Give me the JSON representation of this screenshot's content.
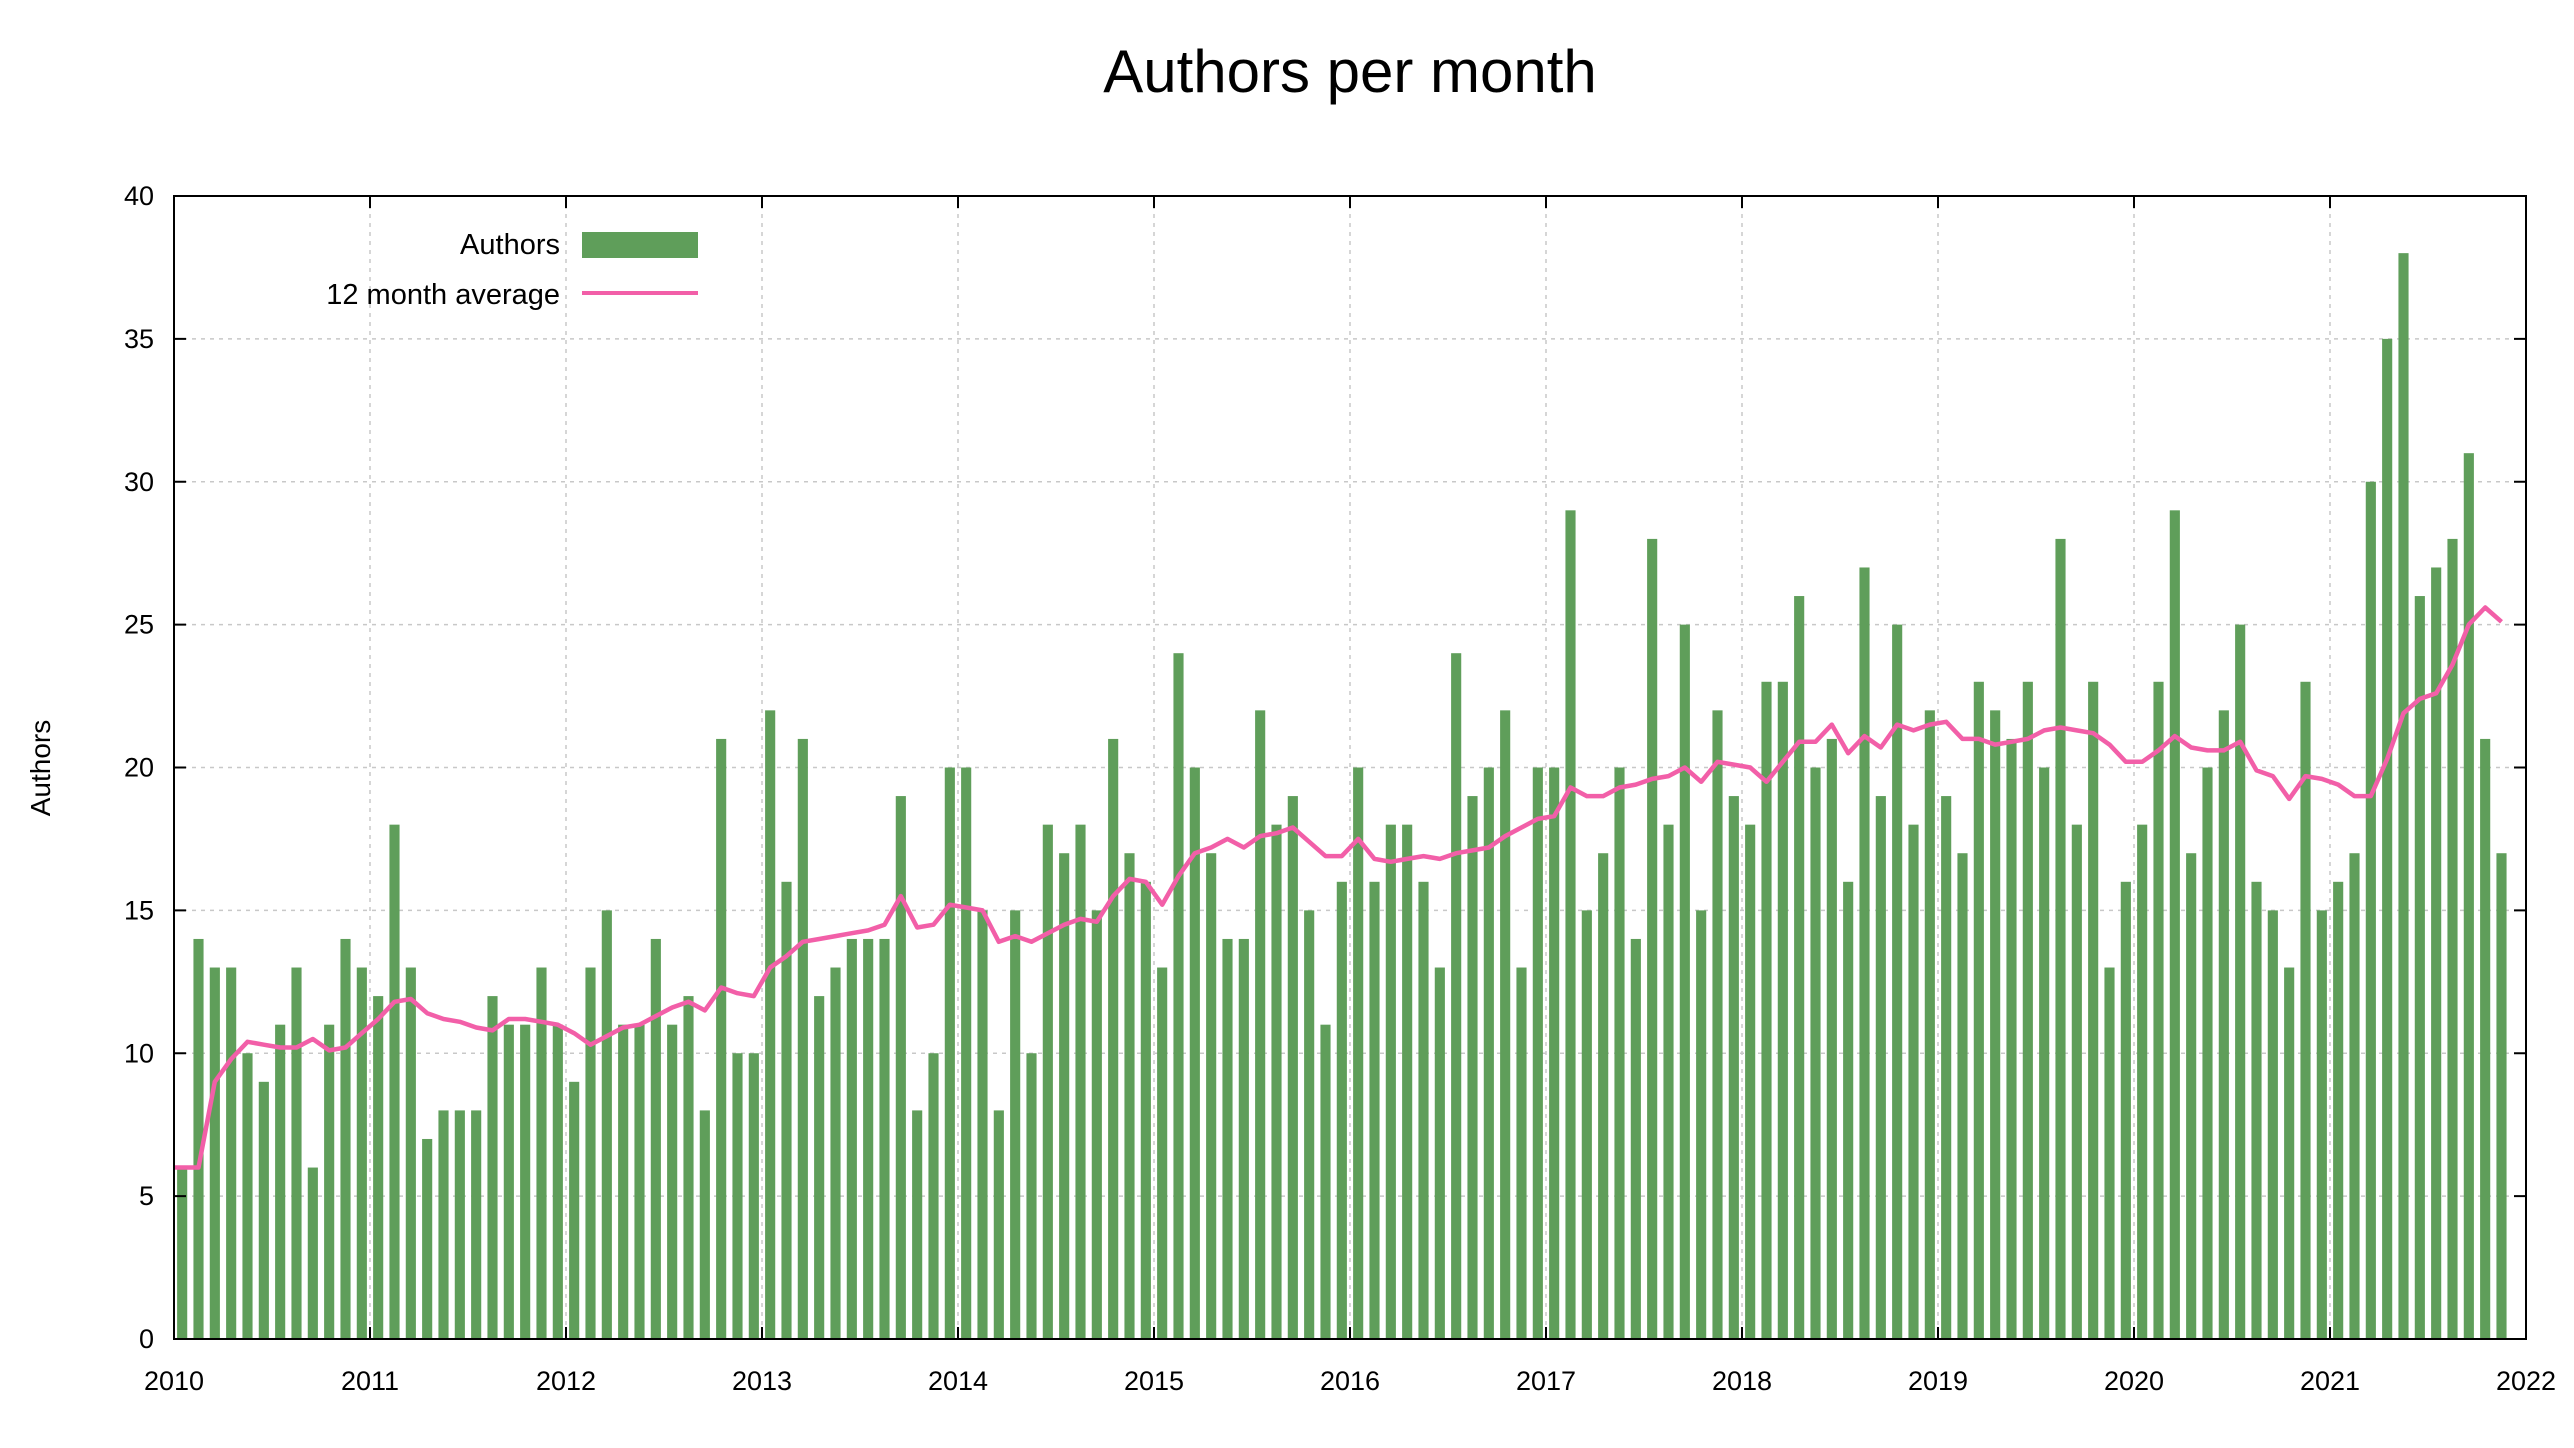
{
  "chart_data": {
    "type": "bar",
    "title": "Authors per month",
    "ylabel": "Authors",
    "xlabel": "",
    "ylim": [
      0,
      40
    ],
    "yticks": [
      0,
      5,
      10,
      15,
      20,
      25,
      30,
      35,
      40
    ],
    "xlim": [
      "2010-01",
      "2022-01"
    ],
    "xticks": [
      "2010",
      "2011",
      "2012",
      "2013",
      "2014",
      "2015",
      "2016",
      "2017",
      "2018",
      "2019",
      "2020",
      "2021",
      "2022"
    ],
    "grid": true,
    "legend_position": "top-left",
    "colors": {
      "bars": "#5f9e5a",
      "average": "#f25fa8"
    },
    "series": [
      {
        "name": "Authors",
        "type": "bar",
        "values": [
          6,
          14,
          13,
          13,
          10,
          9,
          11,
          13,
          6,
          11,
          14,
          13,
          12,
          18,
          13,
          7,
          8,
          8,
          8,
          12,
          11,
          11,
          13,
          11,
          9,
          13,
          15,
          11,
          11,
          14,
          11,
          12,
          8,
          21,
          10,
          10,
          22,
          16,
          21,
          12,
          13,
          14,
          14,
          14,
          19,
          8,
          10,
          20,
          20,
          15,
          8,
          15,
          10,
          18,
          17,
          18,
          15,
          21,
          17,
          16,
          13,
          24,
          20,
          17,
          14,
          14,
          22,
          18,
          19,
          15,
          11,
          16,
          20,
          16,
          18,
          18,
          16,
          13,
          24,
          19,
          20,
          22,
          13,
          20,
          20,
          29,
          15,
          17,
          20,
          14,
          28,
          18,
          25,
          15,
          22,
          19,
          18,
          23,
          23,
          26,
          20,
          21,
          16,
          27,
          19,
          25,
          18,
          22,
          19,
          17,
          23,
          22,
          21,
          23,
          20,
          28,
          18,
          23,
          13,
          16,
          18,
          23,
          29,
          17,
          20,
          22,
          25,
          16,
          15,
          13,
          23,
          15,
          16,
          17,
          30,
          35,
          38,
          26,
          27,
          28,
          31,
          21,
          17
        ]
      },
      {
        "name": "12 month average",
        "type": "line",
        "values": [
          6,
          6,
          9,
          9.8,
          10.4,
          10.3,
          10.2,
          10.2,
          10.5,
          10.1,
          10.2,
          10.7,
          11.2,
          11.8,
          11.9,
          11.4,
          11.2,
          11.1,
          10.9,
          10.8,
          11.2,
          11.2,
          11.1,
          11.0,
          10.7,
          10.3,
          10.6,
          10.9,
          11.0,
          11.3,
          11.6,
          11.8,
          11.5,
          12.3,
          12.1,
          12.0,
          13.0,
          13.4,
          13.9,
          14.0,
          14.1,
          14.2,
          14.3,
          14.5,
          15.5,
          14.4,
          14.5,
          15.2,
          15.1,
          15.0,
          13.9,
          14.1,
          13.9,
          14.2,
          14.5,
          14.7,
          14.6,
          15.5,
          16.1,
          16.0,
          15.2,
          16.2,
          17.0,
          17.2,
          17.5,
          17.2,
          17.6,
          17.7,
          17.9,
          17.4,
          16.9,
          16.9,
          17.5,
          16.8,
          16.7,
          16.8,
          16.9,
          16.8,
          17.0,
          17.1,
          17.2,
          17.6,
          17.9,
          18.2,
          18.3,
          19.3,
          19.0,
          19.0,
          19.3,
          19.4,
          19.6,
          19.7,
          20.0,
          19.5,
          20.2,
          20.1,
          20.0,
          19.5,
          20.2,
          20.9,
          20.9,
          21.5,
          20.5,
          21.1,
          20.7,
          21.5,
          21.3,
          21.5,
          21.6,
          21.0,
          21.0,
          20.8,
          20.9,
          21.0,
          21.3,
          21.4,
          21.3,
          21.2,
          20.8,
          20.2,
          20.2,
          20.6,
          21.1,
          20.7,
          20.6,
          20.6,
          20.9,
          19.9,
          19.7,
          18.9,
          19.7,
          19.6,
          19.4,
          19.0,
          19.0,
          20.3,
          21.9,
          22.4,
          22.6,
          23.6,
          25.0,
          25.6,
          25.1
        ]
      }
    ]
  }
}
